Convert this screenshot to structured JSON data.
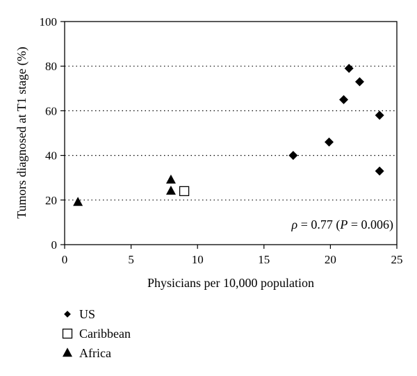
{
  "chart_data": {
    "type": "scatter",
    "xlabel": "Physicians per 10,000 population",
    "ylabel": "Tumors diagnosed at T1 stage (%)",
    "xlim": [
      0,
      25
    ],
    "ylim": [
      0,
      100
    ],
    "xticks": [
      "0",
      "5",
      "10",
      "15",
      "20",
      "25"
    ],
    "yticks": [
      "0",
      "20",
      "40",
      "60",
      "80",
      "100"
    ],
    "grid": "horizontal dotted",
    "legend_position": "bottom-left",
    "annotation": {
      "rho_symbol": "ρ",
      "text": " = 0.77 (",
      "p_symbol": "P",
      "text_end": " = 0.006)"
    },
    "series": [
      {
        "name": "US",
        "marker": "diamond",
        "x": [
          17.2,
          19.9,
          21.0,
          21.4,
          22.2,
          23.7,
          23.7
        ],
        "y": [
          40,
          46,
          65,
          79,
          73,
          58,
          33
        ]
      },
      {
        "name": "Caribbean",
        "marker": "square-open",
        "x": [
          9.0
        ],
        "y": [
          24
        ]
      },
      {
        "name": "Africa",
        "marker": "triangle",
        "x": [
          1.0,
          8.0,
          8.0
        ],
        "y": [
          19,
          29,
          24
        ]
      }
    ]
  }
}
